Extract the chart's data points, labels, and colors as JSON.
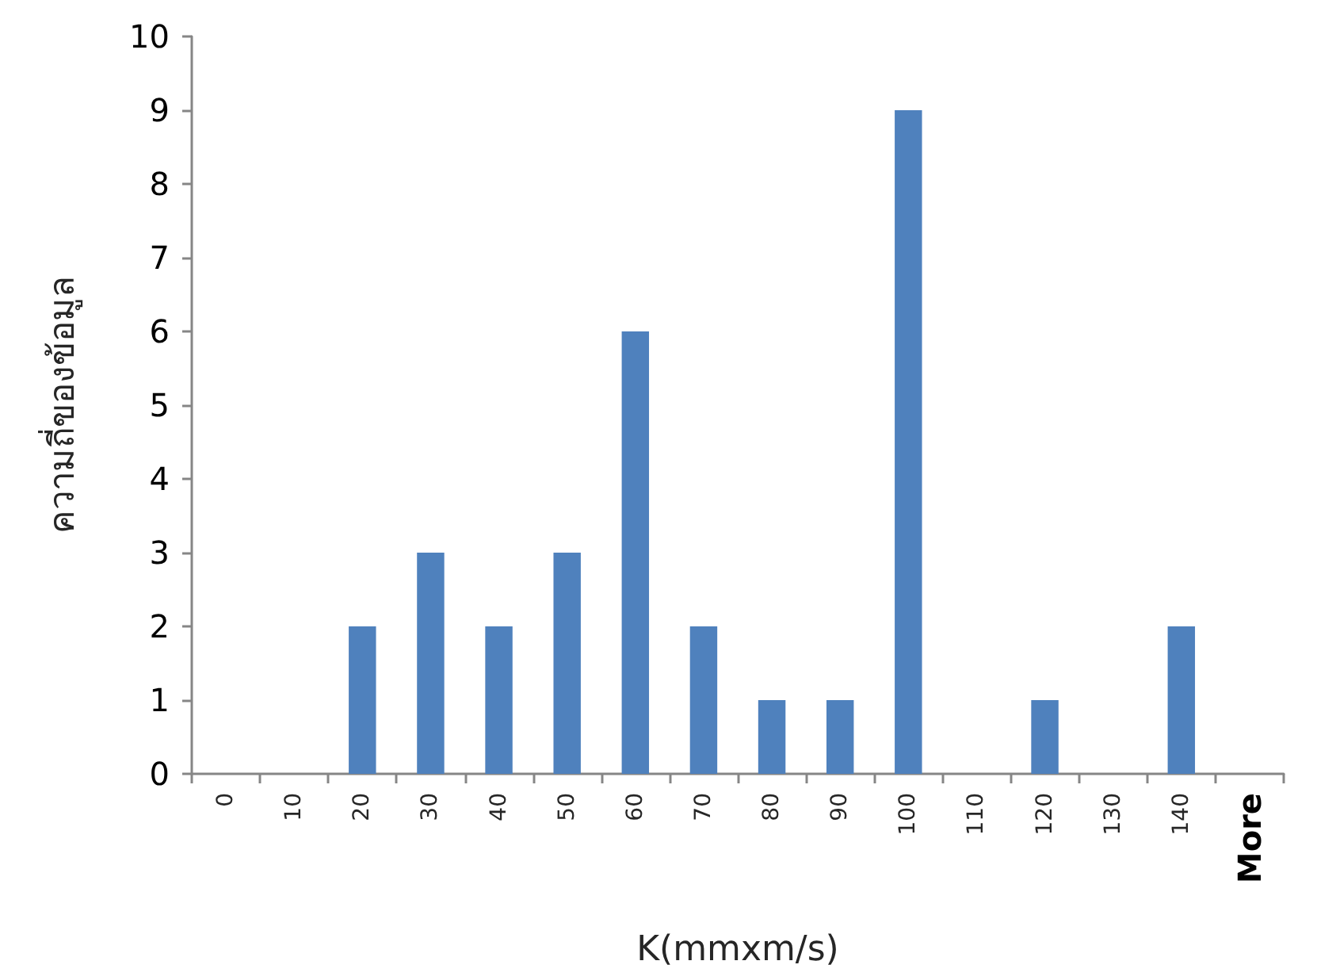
{
  "chart_data": {
    "type": "bar",
    "xlabel": "K(mmxm/s)",
    "ylabel": "ความถี่ของข้อมูล",
    "categories": [
      "0",
      "10",
      "20",
      "30",
      "40",
      "50",
      "60",
      "70",
      "80",
      "90",
      "100",
      "110",
      "120",
      "130",
      "140",
      "More"
    ],
    "values": [
      0,
      0,
      2,
      3,
      2,
      3,
      6,
      2,
      1,
      1,
      9,
      0,
      1,
      0,
      2,
      0
    ],
    "color": "#4f81bd",
    "ylim": [
      0,
      10
    ],
    "yticks": [
      0,
      1,
      2,
      3,
      4,
      5,
      6,
      7,
      8,
      9,
      10
    ]
  }
}
